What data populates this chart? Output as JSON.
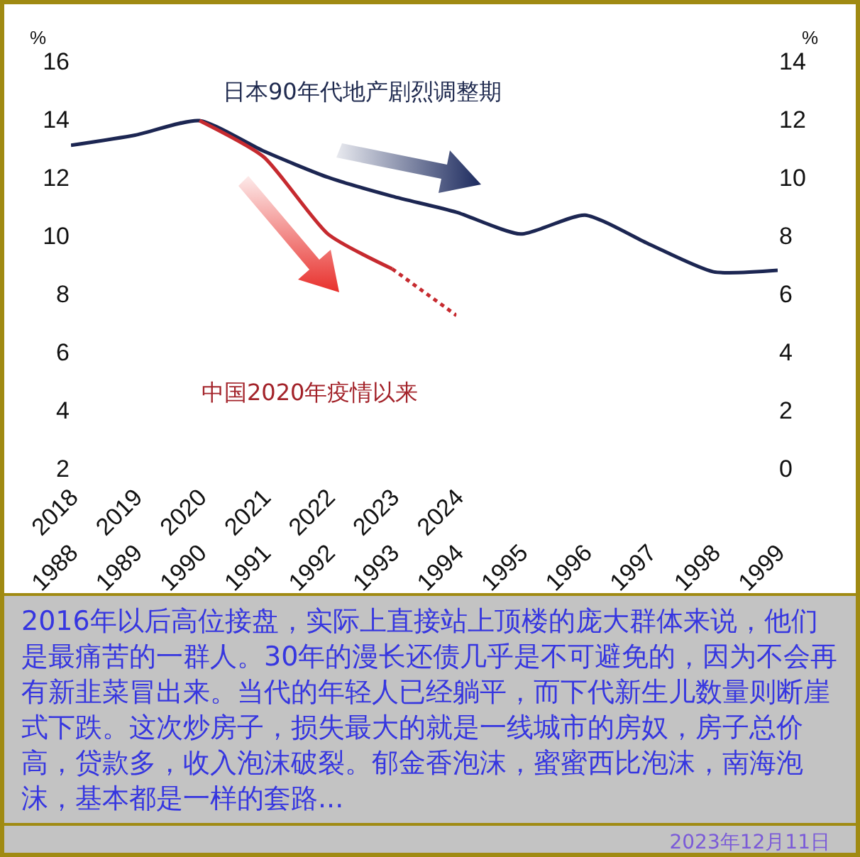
{
  "chart_data": {
    "type": "line",
    "x": [
      1988,
      1989,
      1990,
      1991,
      1992,
      1993,
      1994,
      1995,
      1996,
      1997,
      1998,
      1999
    ],
    "xlim": [
      1988,
      1999
    ],
    "xticks": [
      1988,
      1989,
      1990,
      1991,
      1992,
      1993,
      1994,
      1995,
      1996,
      1997,
      1998,
      1999
    ],
    "x2lim": [
      2018,
      2024
    ],
    "x2ticks": [
      2018,
      2019,
      2020,
      2021,
      2022,
      2023,
      2024
    ],
    "ylim": [
      2,
      16
    ],
    "yticks": [
      2,
      4,
      6,
      8,
      10,
      12,
      14,
      16
    ],
    "y2lim": [
      0,
      14
    ],
    "y2ticks": [
      0,
      2,
      4,
      6,
      8,
      10,
      12,
      14
    ],
    "ylabel": "%",
    "y2label": "%",
    "series": [
      {
        "color": "#c62a2f",
        "axis": "x2",
        "line_style": "solid",
        "x": [
          2020,
          2021,
          2022,
          2023
        ],
        "values": [
          13.95,
          12.7,
          10.05,
          8.85
        ]
      },
      {
        "color": "#c62a2f",
        "axis": "x2",
        "line_style": "dotted",
        "x": [
          2023,
          2024
        ],
        "values": [
          8.85,
          7.25
        ]
      },
      {
        "color": "#1c2652",
        "axis": "y2",
        "line_style": "solid",
        "values": [
          11.1,
          11.45,
          11.95,
          10.9,
          10.0,
          9.35,
          8.8,
          8.05,
          8.7,
          7.7,
          6.75,
          6.8
        ]
      }
    ],
    "annotations": [
      "日本90年代地产剧烈调整期",
      "中国2020年疫情以来",
      "2016年以后高位接盘，实际上直接站上顶楼的庞大群体来说，他们是最痛苦的一群人。30年的漫长还债几乎是不可避免的，因为不会再有新韭菜冒出来。当代的年轻人已经躺平，而下代新生儿数量则断崖式下跌。这次炒房子，损失最大的就是一线城市的房奴，房子总价高，贷款多，收入泡沫破裂。郁金香泡沫，蜜蜜西比泡沫，南海泡沫，基本都是一样的套路...",
      "2023年12月11日"
    ],
    "grid": false,
    "marker": "none"
  }
}
